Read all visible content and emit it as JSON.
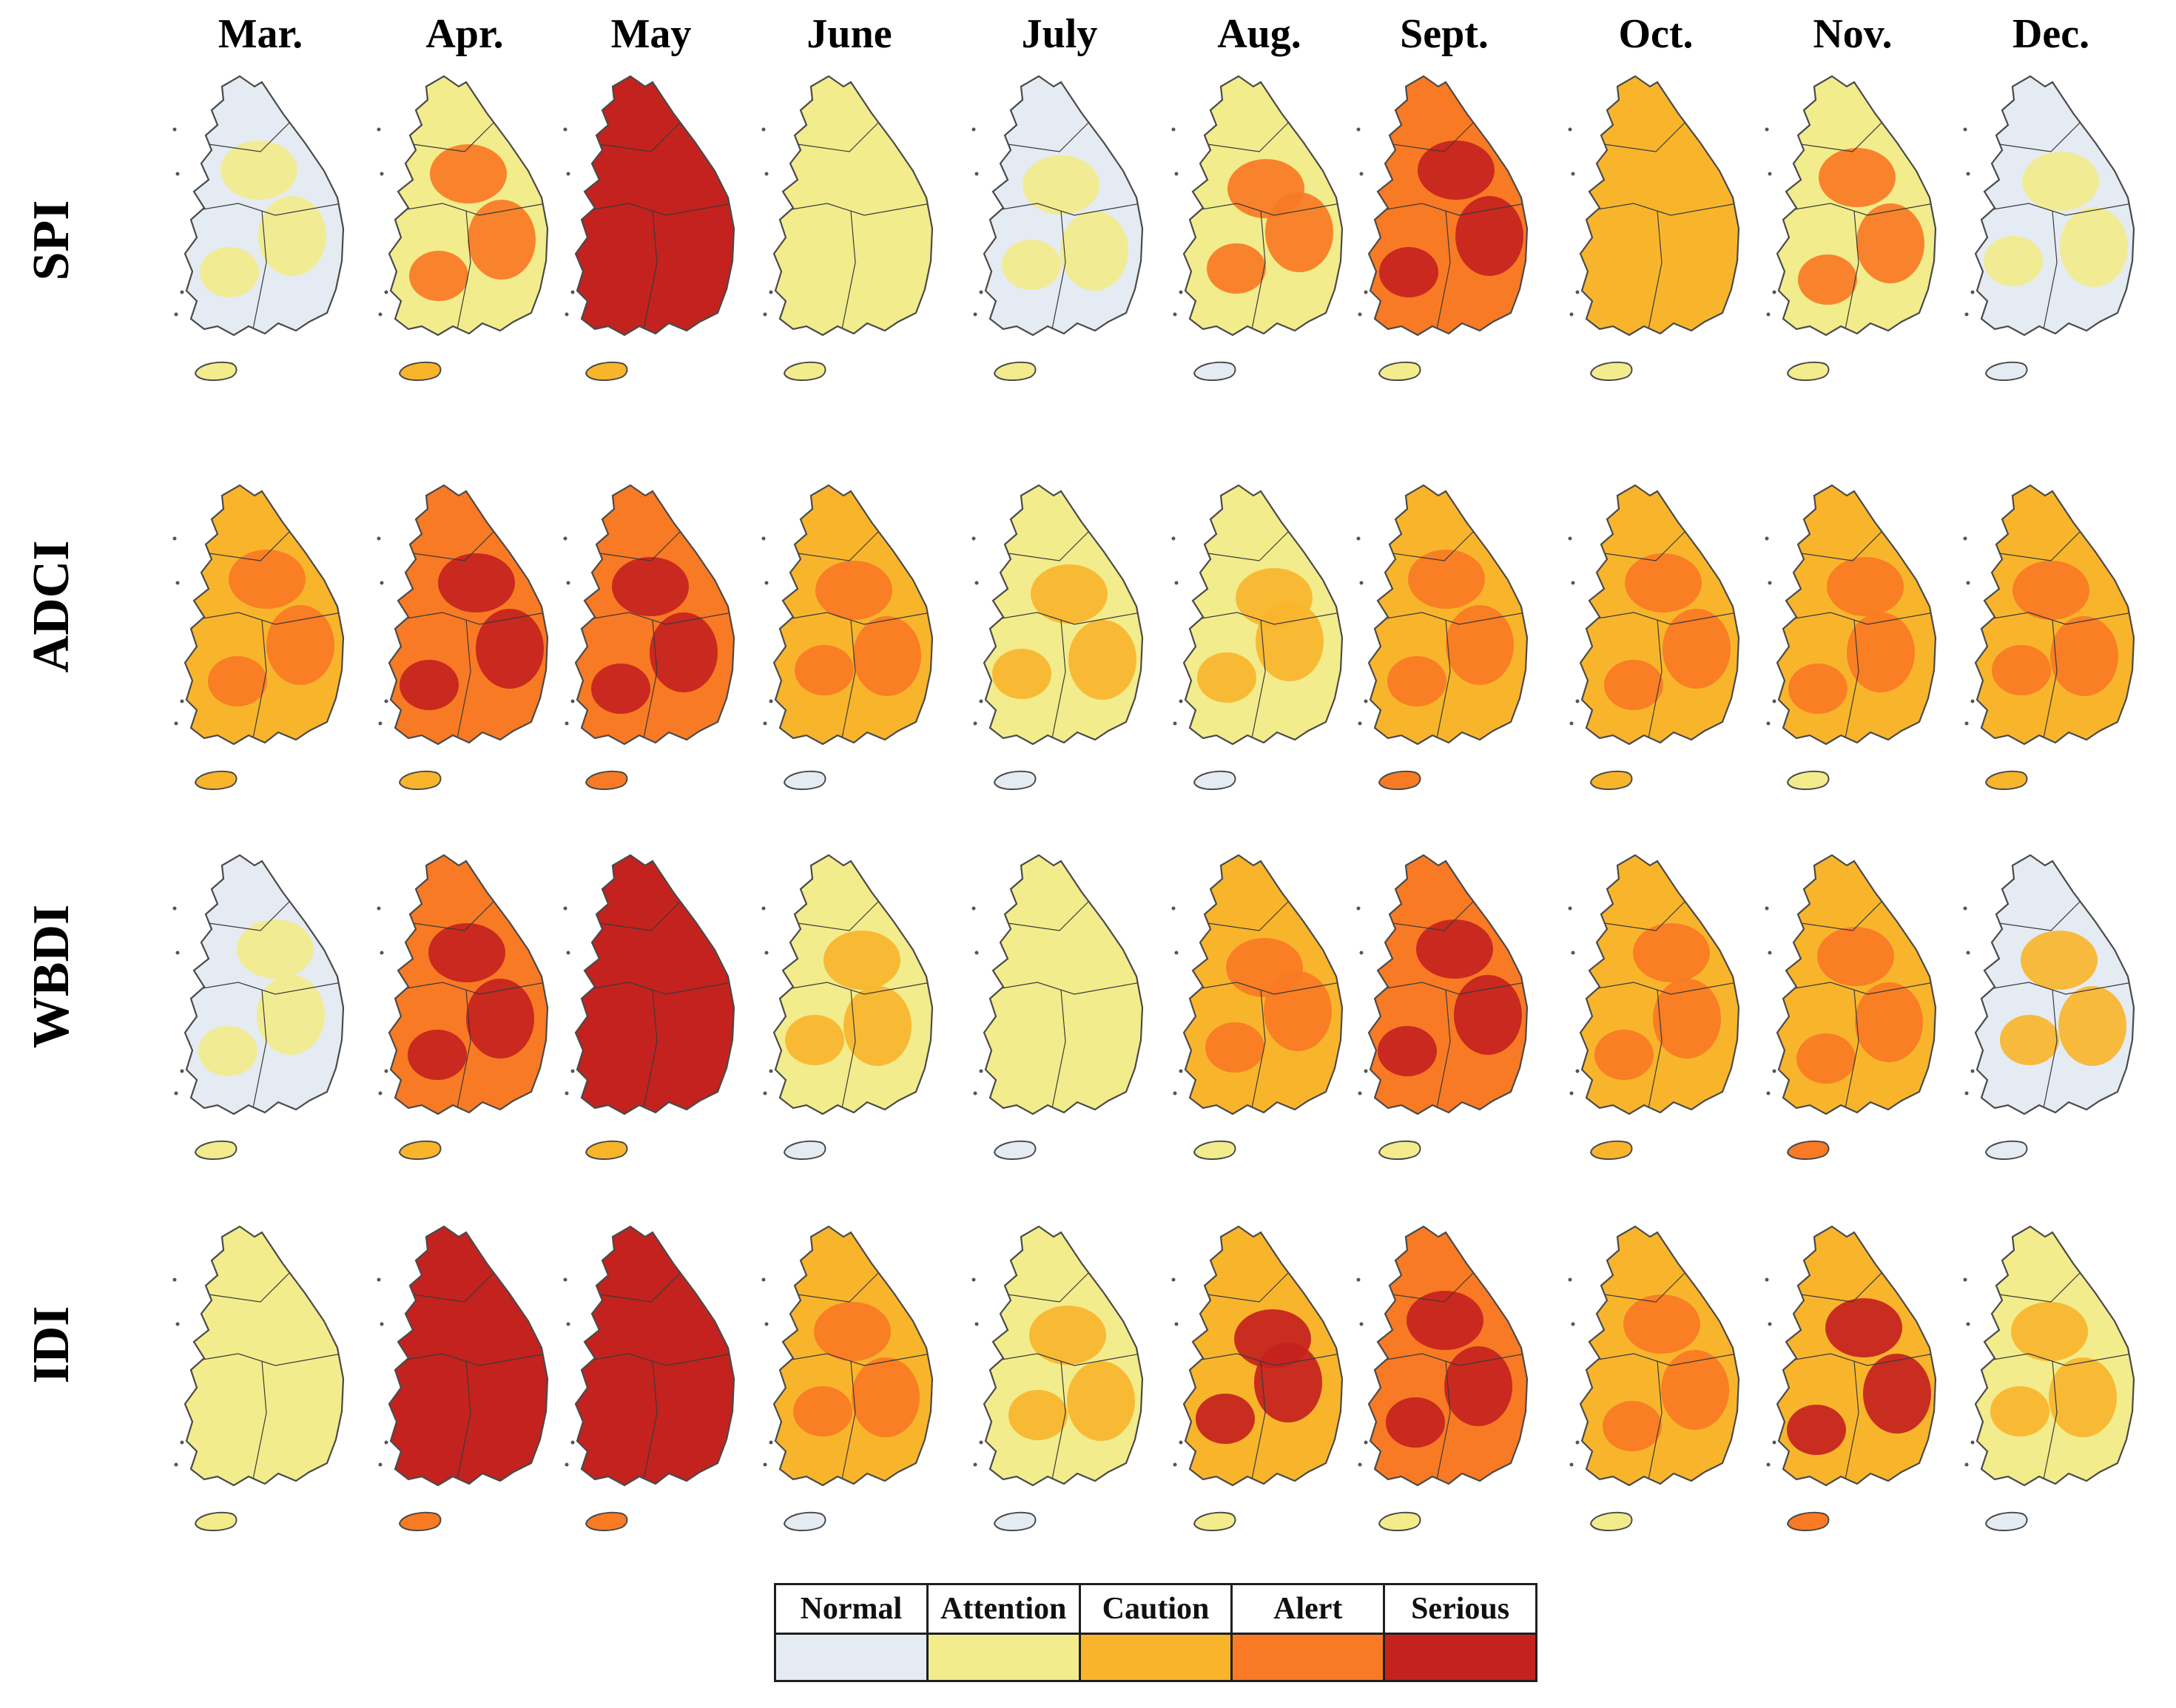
{
  "figure": {
    "months": [
      "Mar.",
      "Apr.",
      "May",
      "June",
      "July",
      "Aug.",
      "Sept.",
      "Oct.",
      "Nov.",
      "Dec."
    ],
    "rows": [
      {
        "index": "SPI",
        "levels": [
          0,
          1,
          4,
          1,
          0,
          1,
          3,
          2,
          1,
          0
        ],
        "hotspot_levels": [
          1,
          3,
          4,
          1,
          1,
          3,
          4,
          2,
          3,
          1
        ],
        "jeju_levels": [
          1,
          2,
          2,
          1,
          1,
          0,
          1,
          1,
          1,
          0
        ]
      },
      {
        "index": "ADCI",
        "levels": [
          2,
          3,
          3,
          2,
          1,
          1,
          2,
          2,
          2,
          2
        ],
        "hotspot_levels": [
          3,
          4,
          4,
          3,
          2,
          2,
          3,
          3,
          3,
          3
        ],
        "jeju_levels": [
          2,
          2,
          3,
          0,
          0,
          0,
          3,
          2,
          1,
          2
        ]
      },
      {
        "index": "WBDI",
        "levels": [
          0,
          3,
          4,
          1,
          1,
          2,
          3,
          2,
          2,
          0
        ],
        "hotspot_levels": [
          1,
          4,
          4,
          2,
          1,
          3,
          4,
          3,
          3,
          2
        ],
        "jeju_levels": [
          1,
          2,
          2,
          0,
          0,
          1,
          1,
          2,
          3,
          0
        ]
      },
      {
        "index": "IDI",
        "levels": [
          1,
          4,
          4,
          2,
          1,
          2,
          3,
          2,
          2,
          1
        ],
        "hotspot_levels": [
          1,
          4,
          4,
          3,
          2,
          4,
          4,
          3,
          4,
          2
        ],
        "jeju_levels": [
          1,
          3,
          3,
          0,
          0,
          1,
          1,
          1,
          3,
          0
        ]
      }
    ]
  },
  "legend": {
    "categories": [
      {
        "label": "Normal",
        "color": "#e4ebf3"
      },
      {
        "label": "Attention",
        "color": "#f2ec8c"
      },
      {
        "label": "Caution",
        "color": "#f8b52c"
      },
      {
        "label": "Alert",
        "color": "#f87a24"
      },
      {
        "label": "Serious",
        "color": "#c4221e"
      }
    ]
  }
}
